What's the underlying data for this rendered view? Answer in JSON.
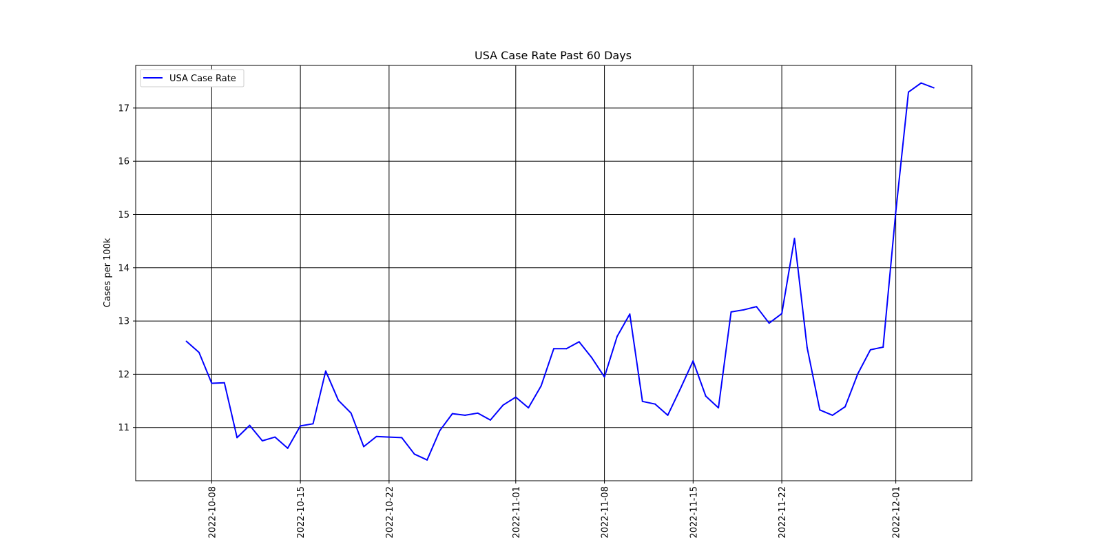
{
  "chart_data": {
    "type": "line",
    "title": "USA Case Rate Past 60 Days",
    "xlabel": "",
    "ylabel": "Cases per 100k",
    "xlim": [
      "2022-10-02",
      "2022-12-07"
    ],
    "ylim": [
      10.0,
      17.8
    ],
    "grid": true,
    "legend_position": "top-left",
    "x_ticks": [
      "2022-10-08",
      "2022-10-15",
      "2022-10-22",
      "2022-11-01",
      "2022-11-08",
      "2022-11-15",
      "2022-11-22",
      "2022-12-01"
    ],
    "y_ticks": [
      11,
      12,
      13,
      14,
      15,
      16,
      17
    ],
    "series": [
      {
        "name": "USA Case Rate",
        "color": "#0000ff",
        "x": [
          "2022-10-06",
          "2022-10-07",
          "2022-10-08",
          "2022-10-09",
          "2022-10-10",
          "2022-10-11",
          "2022-10-12",
          "2022-10-13",
          "2022-10-14",
          "2022-10-15",
          "2022-10-16",
          "2022-10-17",
          "2022-10-18",
          "2022-10-19",
          "2022-10-20",
          "2022-10-21",
          "2022-10-22",
          "2022-10-23",
          "2022-10-24",
          "2022-10-25",
          "2022-10-26",
          "2022-10-27",
          "2022-10-28",
          "2022-10-29",
          "2022-10-30",
          "2022-10-31",
          "2022-11-01",
          "2022-11-02",
          "2022-11-03",
          "2022-11-04",
          "2022-11-05",
          "2022-11-06",
          "2022-11-07",
          "2022-11-08",
          "2022-11-09",
          "2022-11-10",
          "2022-11-11",
          "2022-11-12",
          "2022-11-13",
          "2022-11-14",
          "2022-11-15",
          "2022-11-16",
          "2022-11-17",
          "2022-11-18",
          "2022-11-19",
          "2022-11-20",
          "2022-11-21",
          "2022-11-22",
          "2022-11-23",
          "2022-11-24",
          "2022-11-25",
          "2022-11-26",
          "2022-11-27",
          "2022-11-28",
          "2022-11-29",
          "2022-11-30",
          "2022-12-01",
          "2022-12-02",
          "2022-12-03",
          "2022-12-04"
        ],
        "values": [
          12.62,
          12.41,
          11.83,
          11.84,
          10.81,
          11.04,
          10.75,
          10.82,
          10.61,
          11.03,
          11.07,
          12.06,
          11.51,
          11.27,
          10.64,
          10.83,
          10.82,
          10.81,
          10.5,
          10.39,
          10.94,
          11.26,
          11.23,
          11.27,
          11.14,
          11.42,
          11.57,
          11.37,
          11.78,
          12.48,
          12.48,
          12.61,
          12.31,
          11.95,
          12.71,
          13.13,
          11.49,
          11.44,
          11.23,
          11.73,
          12.25,
          11.59,
          11.37,
          13.17,
          13.21,
          13.27,
          12.96,
          13.14,
          14.55,
          12.5,
          11.33,
          11.23,
          11.39,
          12.01,
          12.46,
          12.51,
          15.05,
          17.3,
          17.47,
          17.38
        ]
      }
    ]
  }
}
